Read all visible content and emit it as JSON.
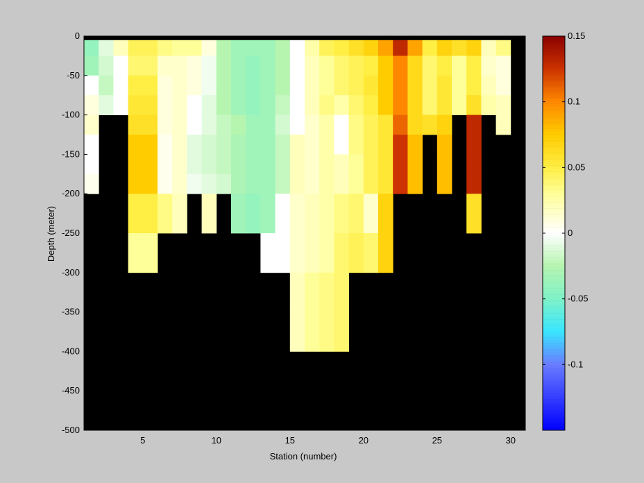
{
  "chart_data": {
    "type": "heatmap",
    "title": "",
    "xlabel": "Station (number)",
    "ylabel": "Depth (meter)",
    "xlim": [
      1,
      31
    ],
    "ylim": [
      -500,
      0
    ],
    "x_ticks": [
      5,
      10,
      15,
      20,
      25,
      30
    ],
    "y_ticks": [
      0,
      -50,
      -100,
      -150,
      -200,
      -250,
      -300,
      -350,
      -400,
      -450,
      -500
    ],
    "colorbar": {
      "range": [
        -0.15,
        0.15
      ],
      "ticks": [
        0.15,
        0.1,
        0.05,
        0,
        -0.05,
        -0.1
      ],
      "tick_labels": [
        "0.15",
        "0.1",
        "0.05",
        "0",
        "-0.05",
        "-0.1"
      ],
      "colormap": [
        [
          -0.15,
          "#0000ff"
        ],
        [
          -0.1,
          "#6a7cff"
        ],
        [
          -0.075,
          "#39e6ff"
        ],
        [
          -0.05,
          "#7ff2c8"
        ],
        [
          -0.025,
          "#b6f5b0"
        ],
        [
          0,
          "#ffffff"
        ],
        [
          0.03,
          "#ffff99"
        ],
        [
          0.05,
          "#ffee44"
        ],
        [
          0.075,
          "#ffcc00"
        ],
        [
          0.1,
          "#ff8800"
        ],
        [
          0.125,
          "#cc3300"
        ],
        [
          0.15,
          "#8b0000"
        ]
      ]
    },
    "grid": false,
    "land_color": "#000000",
    "surface_value": 0.15,
    "station_edges": [
      1.0,
      2.0,
      3.0,
      4.0,
      5.0,
      6.0,
      7.0,
      8.0,
      9.0,
      10.0,
      11.0,
      12.0,
      13.0,
      14.0,
      15.0,
      16.0,
      17.0,
      18.0,
      19.0,
      20.0,
      21.0,
      22.0,
      23.0,
      24.0,
      25.0,
      26.0,
      27.0,
      28.0,
      29.0,
      30.0,
      31.0
    ],
    "depth_bins": [
      [
        -5,
        -25
      ],
      [
        -25,
        -50
      ],
      [
        -50,
        -75
      ],
      [
        -75,
        -100
      ],
      [
        -100,
        -125
      ],
      [
        -125,
        -150
      ],
      [
        -150,
        -175
      ],
      [
        -175,
        -200
      ],
      [
        -200,
        -250
      ],
      [
        -250,
        -300
      ],
      [
        -300,
        -350
      ],
      [
        -350,
        -400
      ]
    ],
    "bottom_depth": [
      200,
      100,
      100,
      300,
      300,
      250,
      250,
      200,
      250,
      200,
      250,
      250,
      300,
      300,
      400,
      400,
      400,
      400,
      300,
      300,
      300,
      200,
      150,
      200,
      150,
      100,
      250,
      100,
      125
    ],
    "columns": [
      [
        -0.04,
        -0.035,
        0.0,
        0.01,
        0.015,
        0.0,
        0.0,
        0.005
      ],
      [
        -0.01,
        -0.015,
        -0.02,
        -0.01,
        null,
        null,
        null,
        null
      ],
      [
        0.02,
        0.0,
        0.0,
        0.0,
        null,
        null,
        null,
        null
      ],
      [
        0.045,
        0.04,
        0.05,
        0.055,
        0.06,
        0.075,
        0.075,
        0.075,
        0.05,
        0.03
      ],
      [
        0.045,
        0.04,
        0.05,
        0.055,
        0.06,
        0.075,
        0.075,
        0.075,
        0.05,
        0.03
      ],
      [
        0.035,
        0.015,
        0.01,
        0.01,
        0.01,
        0.005,
        0.005,
        0.005,
        0.035
      ],
      [
        0.03,
        0.015,
        0.015,
        0.015,
        0.015,
        0.015,
        0.015,
        0.015,
        0.02
      ],
      [
        0.03,
        0.01,
        0.01,
        0.0,
        0.0,
        -0.01,
        -0.01,
        -0.005
      ],
      [
        0.01,
        -0.005,
        -0.005,
        -0.01,
        -0.01,
        -0.015,
        -0.015,
        -0.01,
        0.02
      ],
      [
        -0.025,
        -0.025,
        -0.025,
        -0.025,
        -0.02,
        -0.02,
        -0.02,
        -0.015
      ],
      [
        -0.035,
        -0.035,
        -0.035,
        -0.035,
        -0.025,
        -0.03,
        -0.03,
        -0.03,
        -0.035
      ],
      [
        -0.035,
        -0.04,
        -0.04,
        -0.04,
        -0.035,
        -0.035,
        -0.035,
        -0.035,
        -0.04
      ],
      [
        -0.035,
        -0.035,
        -0.035,
        -0.035,
        -0.035,
        -0.035,
        -0.035,
        -0.035,
        -0.035,
        0.0
      ],
      [
        -0.025,
        -0.025,
        -0.025,
        -0.02,
        -0.015,
        -0.02,
        -0.02,
        -0.02,
        0.0,
        0.0
      ],
      [
        0.0,
        0.0,
        0.0,
        0.0,
        0.0,
        0.02,
        0.02,
        0.02,
        0.015,
        0.015,
        0.02,
        0.02
      ],
      [
        0.025,
        0.02,
        0.02,
        0.02,
        0.015,
        0.015,
        0.015,
        0.015,
        0.02,
        0.02,
        0.03,
        0.03
      ],
      [
        0.045,
        0.03,
        0.03,
        0.035,
        0.025,
        0.025,
        0.025,
        0.025,
        0.025,
        0.025,
        0.035,
        0.035
      ],
      [
        0.05,
        0.04,
        0.04,
        0.025,
        0.0,
        0.0,
        0.02,
        0.02,
        0.035,
        0.04,
        0.04,
        0.04
      ],
      [
        0.06,
        0.045,
        0.045,
        0.04,
        0.035,
        0.035,
        0.03,
        0.03,
        0.04,
        0.045
      ],
      [
        0.07,
        0.05,
        0.055,
        0.05,
        0.045,
        0.045,
        0.045,
        0.045,
        0.015,
        0.04
      ],
      [
        0.09,
        0.075,
        0.075,
        0.075,
        0.055,
        0.055,
        0.055,
        0.055,
        0.07,
        0.07
      ],
      [
        0.13,
        0.1,
        0.1,
        0.1,
        0.11,
        0.125,
        0.125,
        0.125
      ],
      [
        0.09,
        0.065,
        0.065,
        0.065,
        0.065,
        0.08,
        0.08,
        0.08
      ],
      [
        0.05,
        0.04,
        0.04,
        0.04,
        0.06
      ],
      [
        0.07,
        0.05,
        0.055,
        0.055,
        0.07,
        0.08,
        0.08,
        0.08
      ],
      [
        0.06,
        0.03,
        0.03,
        0.03
      ],
      [
        0.07,
        0.05,
        0.05,
        0.06,
        0.13,
        0.13,
        0.13,
        0.13,
        0.06
      ],
      [
        0.02,
        0.015,
        0.02,
        0.025
      ],
      [
        0.035,
        0.01,
        0.01,
        0.02,
        0.02
      ]
    ]
  }
}
